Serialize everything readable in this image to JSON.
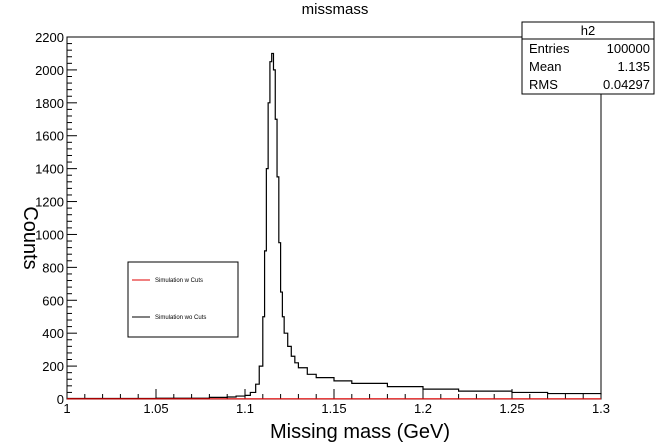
{
  "chart_data": {
    "type": "line",
    "title": "missmass",
    "xlabel": "Missing mass (GeV)",
    "ylabel": "Counts",
    "xlim": [
      1.0,
      1.3
    ],
    "ylim": [
      0,
      2200
    ],
    "x_ticks": [
      "1",
      "1.05",
      "1.1",
      "1.15",
      "1.2",
      "1.25",
      "1.3"
    ],
    "y_ticks": [
      "0",
      "200",
      "400",
      "600",
      "800",
      "1000",
      "1200",
      "1400",
      "1600",
      "1800",
      "2000",
      "2200"
    ],
    "stats_box": {
      "title": "h2",
      "rows": [
        {
          "label": "Entries",
          "value": "100000"
        },
        {
          "label": "Mean",
          "value": "1.135"
        },
        {
          "label": "RMS",
          "value": "0.04297"
        }
      ]
    },
    "legend": {
      "position": "center-left",
      "entries": [
        {
          "name": "Simulation w Cuts",
          "color": "#e00000"
        },
        {
          "name": "Simulation wo Cuts",
          "color": "#000000"
        }
      ]
    },
    "series": [
      {
        "name": "Simulation wo Cuts",
        "color": "#000000",
        "style": "step",
        "x": [
          1.0,
          1.05,
          1.08,
          1.09,
          1.095,
          1.1,
          1.103,
          1.106,
          1.108,
          1.11,
          1.111,
          1.112,
          1.113,
          1.114,
          1.115,
          1.116,
          1.117,
          1.118,
          1.119,
          1.12,
          1.121,
          1.122,
          1.124,
          1.126,
          1.128,
          1.13,
          1.135,
          1.14,
          1.15,
          1.16,
          1.18,
          1.2,
          1.22,
          1.25,
          1.27,
          1.3
        ],
        "y": [
          3,
          5,
          10,
          12,
          18,
          22,
          40,
          90,
          200,
          500,
          900,
          1400,
          1800,
          2050,
          2100,
          2000,
          1700,
          1350,
          950,
          650,
          500,
          400,
          320,
          260,
          220,
          190,
          150,
          130,
          110,
          95,
          75,
          60,
          48,
          40,
          33,
          28
        ]
      },
      {
        "name": "Simulation w Cuts",
        "color": "#e00000",
        "style": "step",
        "x": [
          1.0,
          1.3
        ],
        "y": [
          1,
          1
        ]
      }
    ],
    "grid": false
  }
}
